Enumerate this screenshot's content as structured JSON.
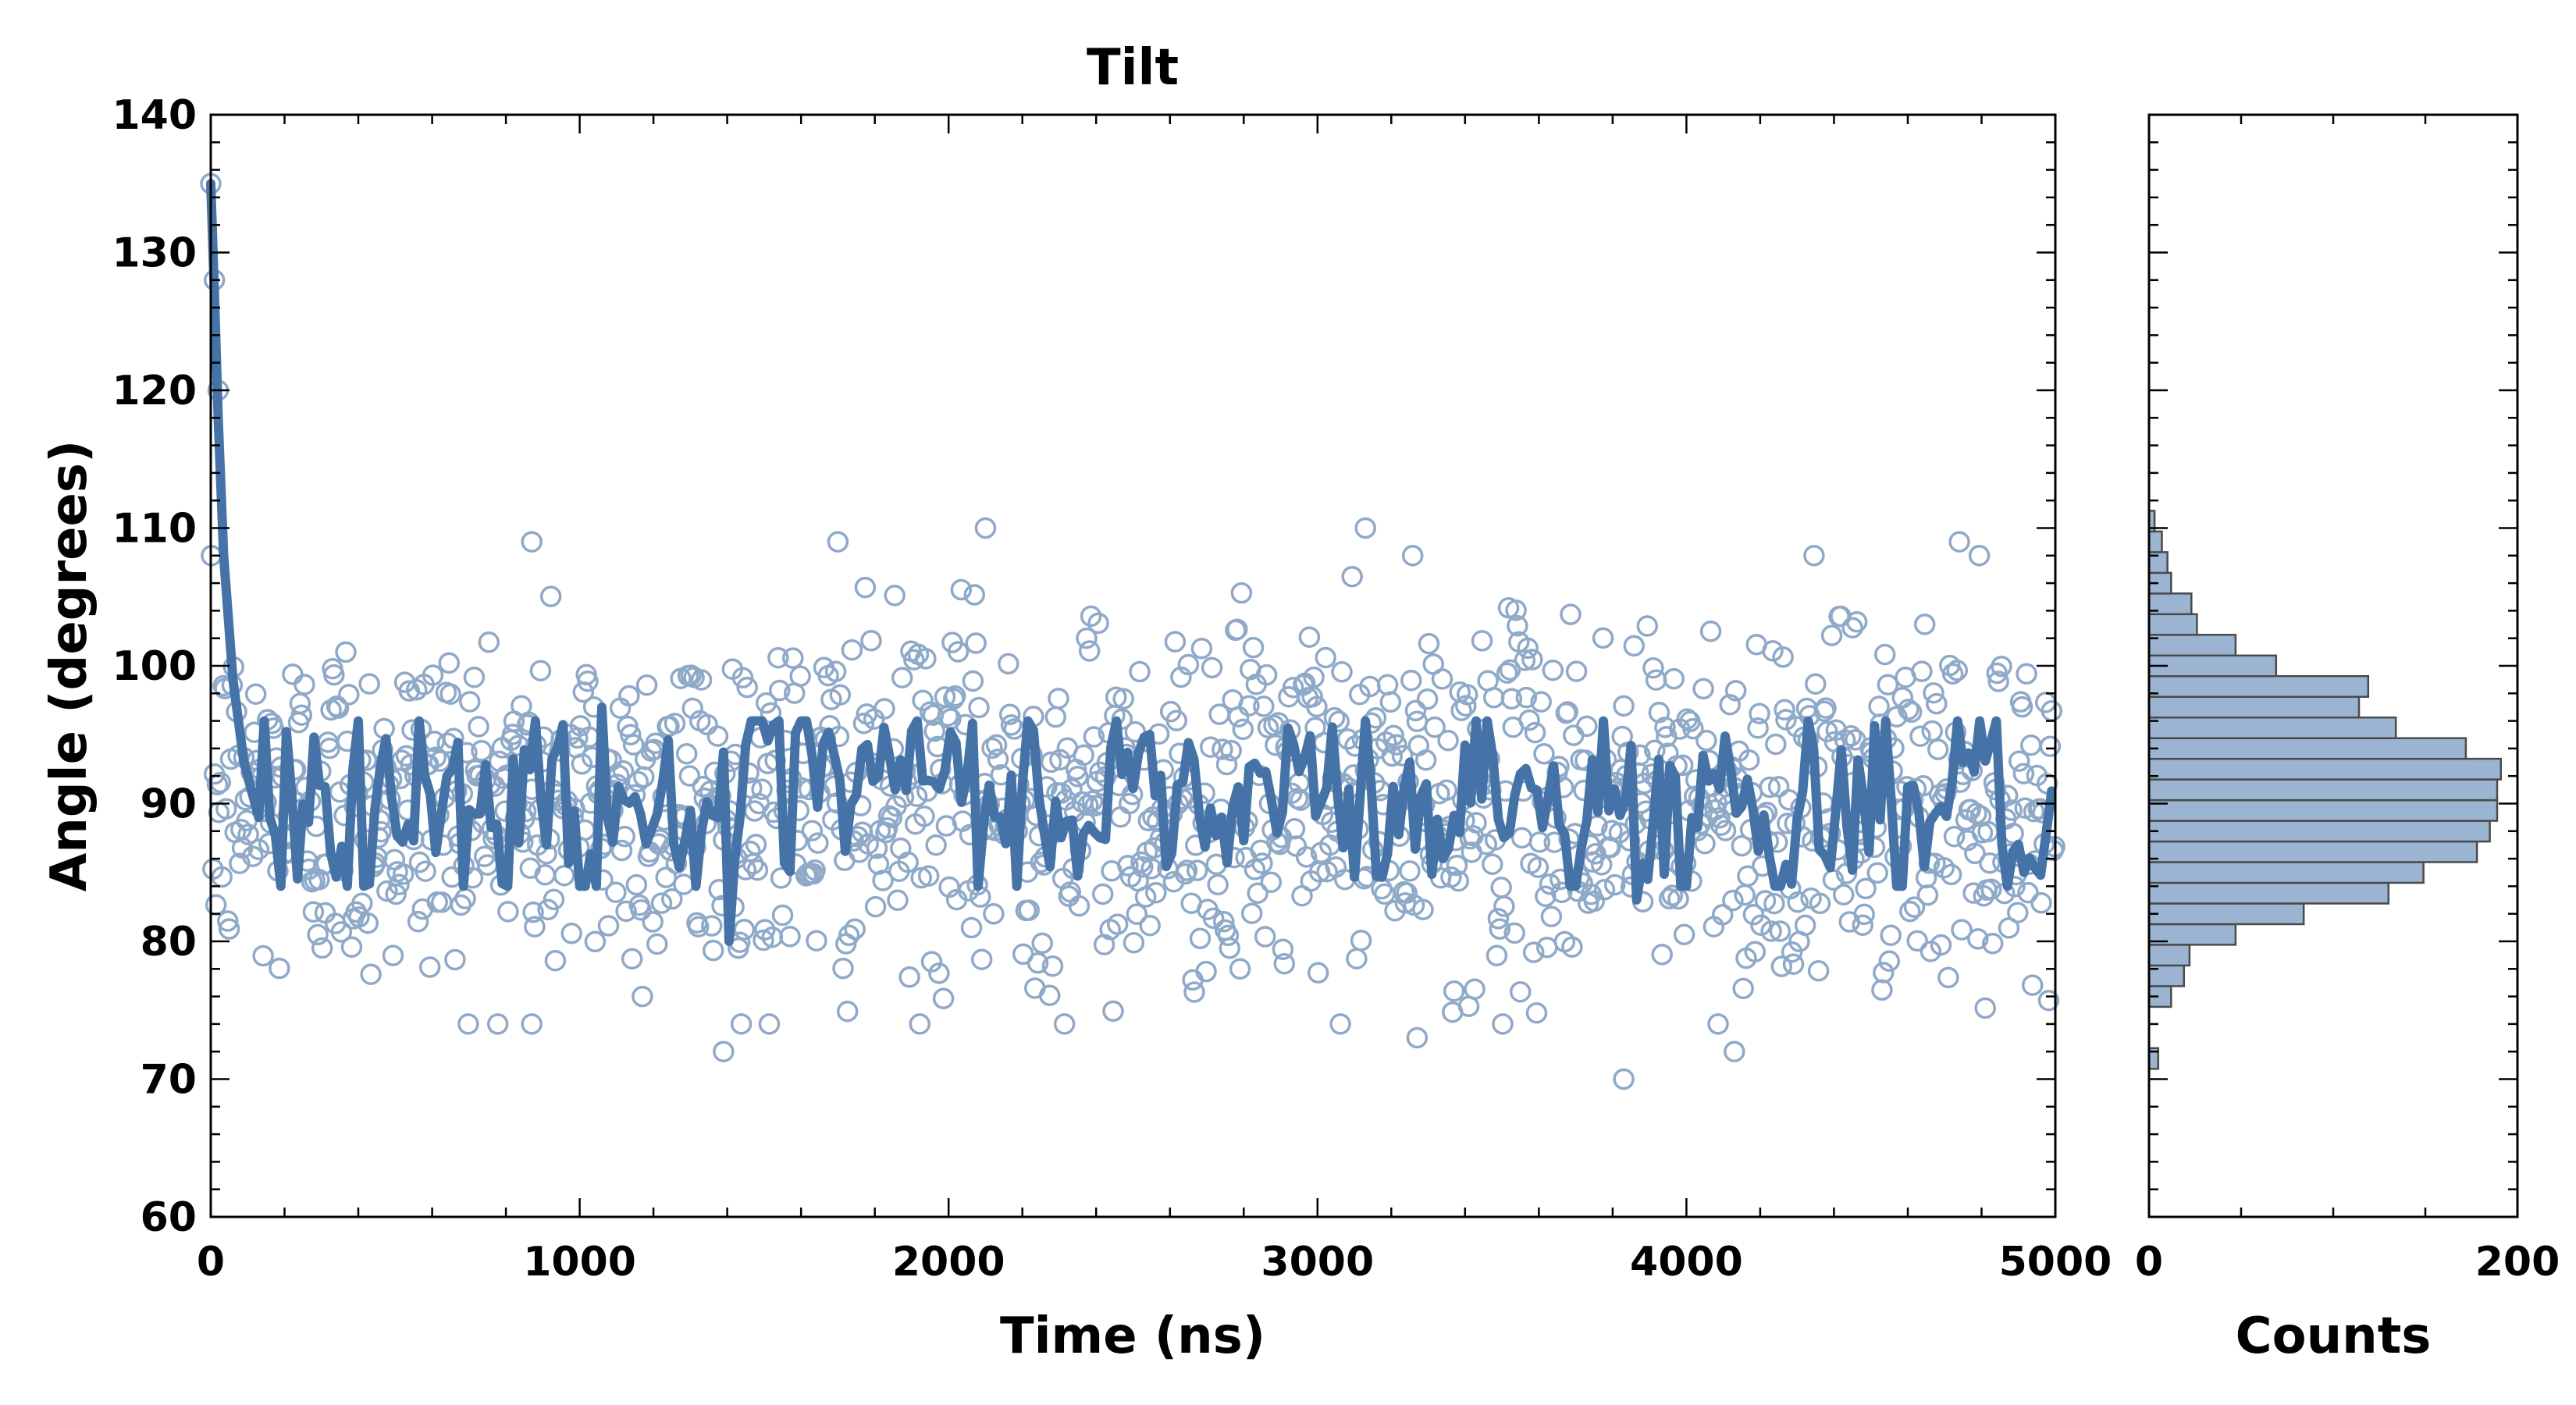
{
  "chart_data": [
    {
      "type": "scatter",
      "title": "Tilt",
      "xlabel": "Time (ns)",
      "ylabel": "Angle (degrees)",
      "xlim": [
        0,
        5000
      ],
      "ylim": [
        60,
        140
      ],
      "xticks": [
        "0",
        "1000",
        "2000",
        "3000",
        "4000",
        "5000"
      ],
      "yticks": [
        "60",
        "70",
        "80",
        "90",
        "100",
        "110",
        "120",
        "130",
        "140"
      ],
      "grid": false,
      "legend": "none",
      "series": [
        {
          "style": "open-circle markers",
          "color": "#8fa9c8",
          "n_points": 1250,
          "mean": 90,
          "std": 6.5,
          "outliers": [
            [
              0,
              135
            ],
            [
              10,
              128
            ],
            [
              20,
              120
            ],
            [
              870,
              109
            ],
            [
              1700,
              109
            ],
            [
              2100,
              110
            ],
            [
              3130,
              110
            ],
            [
              4740,
              109
            ],
            [
              3830,
              70
            ],
            [
              870,
              74
            ],
            [
              1390,
              72
            ],
            [
              3270,
              73
            ],
            [
              4130,
              72
            ]
          ]
        },
        {
          "style": "running-average line",
          "color": "#4573a7",
          "start": [
            [
              0,
              135
            ],
            [
              10,
              127
            ],
            [
              20,
              118
            ],
            [
              35,
              108
            ],
            [
              60,
              99
            ],
            [
              90,
              93
            ],
            [
              130,
              89
            ]
          ],
          "mean": 90,
          "amplitude": 4,
          "features": [
            [
              1060,
              97
            ],
            [
              1400,
              80
            ],
            [
              3860,
              83
            ],
            [
              4730,
              96
            ],
            [
              4910,
              85
            ]
          ]
        }
      ]
    },
    {
      "type": "bar",
      "orientation": "horizontal",
      "xlabel": "Counts",
      "xlim": [
        0,
        200
      ],
      "xticks": [
        "0",
        "200"
      ],
      "ylim": [
        60,
        140
      ],
      "color": "#9bb4d1",
      "edge_color": "#4a4a4a",
      "bin_width": 1.5,
      "bins": [
        [
          71.5,
          5
        ],
        [
          73.0,
          0
        ],
        [
          74.5,
          0
        ],
        [
          76.0,
          12
        ],
        [
          77.5,
          19
        ],
        [
          79.0,
          22
        ],
        [
          80.5,
          47
        ],
        [
          82.0,
          84
        ],
        [
          83.5,
          130
        ],
        [
          85.0,
          149
        ],
        [
          86.5,
          178
        ],
        [
          88.0,
          185
        ],
        [
          89.5,
          189
        ],
        [
          91.0,
          189
        ],
        [
          92.5,
          191
        ],
        [
          94.0,
          172
        ],
        [
          95.5,
          134
        ],
        [
          97.0,
          114
        ],
        [
          98.5,
          119
        ],
        [
          100.0,
          69
        ],
        [
          101.5,
          47
        ],
        [
          103.0,
          26
        ],
        [
          104.5,
          23
        ],
        [
          106.0,
          12
        ],
        [
          107.5,
          10
        ],
        [
          109.0,
          7
        ],
        [
          110.5,
          3
        ]
      ]
    }
  ]
}
